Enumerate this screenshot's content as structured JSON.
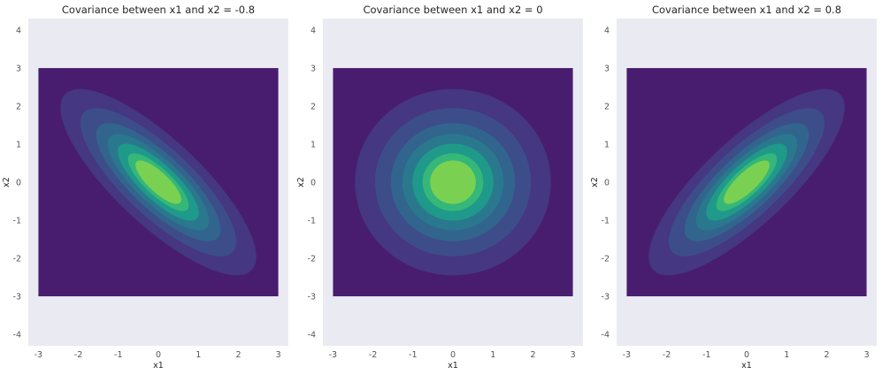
{
  "chart_data": [
    {
      "type": "contour",
      "title": "Covariance between x1 and x2 = -0.8",
      "xlabel": "x1",
      "ylabel": "x2",
      "xlim": [
        -3.25,
        3.25
      ],
      "ylim": [
        -4.3,
        4.3
      ],
      "xticks": [
        "-3",
        "-2",
        "-1",
        "0",
        "1",
        "2",
        "3"
      ],
      "yticks": [
        "-4",
        "-3",
        "-2",
        "-1",
        "0",
        "1",
        "2",
        "3",
        "4"
      ],
      "grid": false,
      "domain": {
        "x": [
          -3,
          3
        ],
        "y": [
          -3,
          3
        ]
      },
      "covariance": -0.8,
      "mean": [
        0,
        0
      ]
    },
    {
      "type": "contour",
      "title": "Covariance between x1 and x2 = 0",
      "xlabel": "x1",
      "ylabel": "x2",
      "xlim": [
        -3.25,
        3.25
      ],
      "ylim": [
        -4.3,
        4.3
      ],
      "xticks": [
        "-3",
        "-2",
        "-1",
        "0",
        "1",
        "2",
        "3"
      ],
      "yticks": [
        "-4",
        "-3",
        "-2",
        "-1",
        "0",
        "1",
        "2",
        "3",
        "4"
      ],
      "grid": false,
      "domain": {
        "x": [
          -3,
          3
        ],
        "y": [
          -3,
          3
        ]
      },
      "covariance": 0,
      "mean": [
        0,
        0
      ]
    },
    {
      "type": "contour",
      "title": "Covariance between x1 and x2 = 0.8",
      "xlabel": "x1",
      "ylabel": "x2",
      "xlim": [
        -3.25,
        3.25
      ],
      "ylim": [
        -4.3,
        4.3
      ],
      "xticks": [
        "-3",
        "-2",
        "-1",
        "0",
        "1",
        "2",
        "3"
      ],
      "yticks": [
        "-4",
        "-3",
        "-2",
        "-1",
        "0",
        "1",
        "2",
        "3",
        "4"
      ],
      "grid": false,
      "domain": {
        "x": [
          -3,
          3
        ],
        "y": [
          -3,
          3
        ]
      },
      "covariance": 0.8,
      "mean": [
        0,
        0
      ]
    }
  ],
  "colors": {
    "axes_background": "#eaeaf2",
    "text": "#262626",
    "tick_label": "#555555",
    "contour_fill": [
      "#481d6f",
      "#453781",
      "#3d4d8a",
      "#32658e",
      "#2a788e",
      "#1f9a8a",
      "#35b779",
      "#7ad151",
      "#dde318"
    ]
  },
  "contour_levels": [
    0,
    0.05,
    0.15,
    0.3,
    0.45,
    0.6,
    0.75,
    0.85
  ]
}
